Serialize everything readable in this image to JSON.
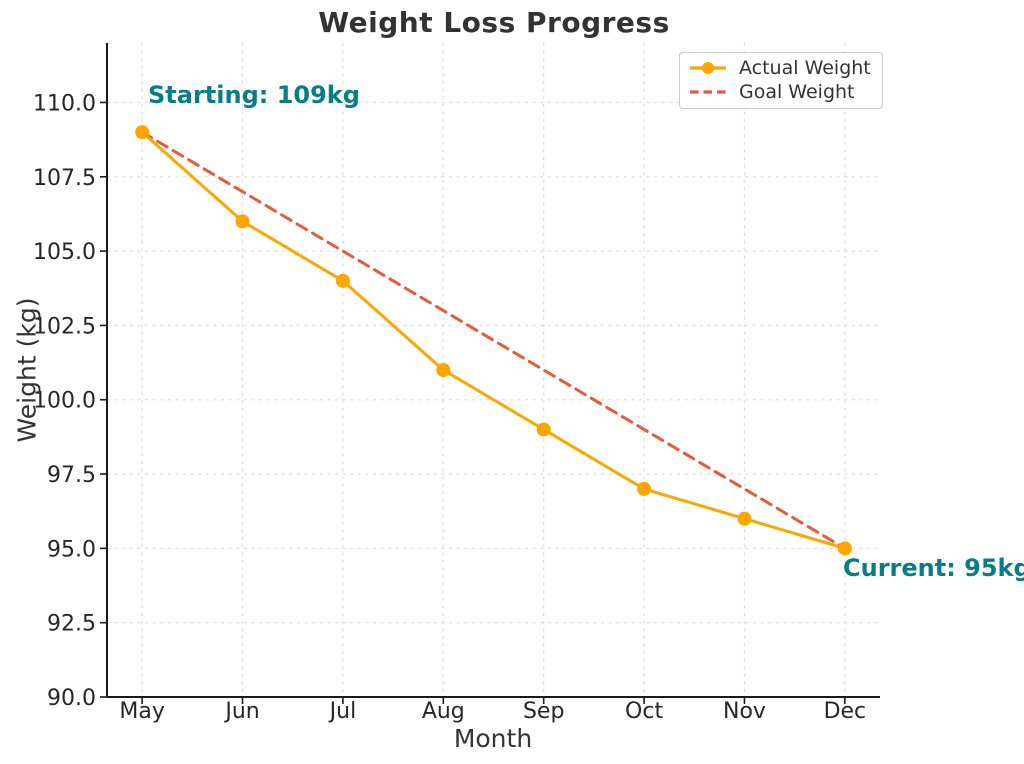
{
  "chart_data": {
    "type": "line",
    "title": "Weight Loss Progress",
    "xlabel": "Month",
    "ylabel": "Weight (kg)",
    "categories": [
      "May",
      "Jun",
      "Jul",
      "Aug",
      "Sep",
      "Oct",
      "Nov",
      "Dec"
    ],
    "series": [
      {
        "name": "Actual Weight",
        "values": [
          109,
          106,
          104,
          101,
          99,
          97,
          96,
          95
        ],
        "color": "#ffa500",
        "line_style": "solid",
        "marker": "circle"
      },
      {
        "name": "Goal Weight",
        "values": [
          109,
          107,
          105,
          103,
          101,
          99,
          97,
          95
        ],
        "color": "#e8593a",
        "line_style": "dashed",
        "marker": "none"
      }
    ],
    "ylim": [
      90,
      112
    ],
    "yticks": [
      "90.0",
      "92.5",
      "95.0",
      "97.5",
      "100.0",
      "102.5",
      "105.0",
      "107.5",
      "110.0"
    ],
    "grid": true,
    "legend_position": "upper right",
    "annotations": [
      {
        "text": "Starting: 109kg",
        "anchor": "first-point"
      },
      {
        "text": "Current: 95kg",
        "anchor": "last-point"
      }
    ],
    "colors": {
      "annotation": "#077e86",
      "grid": "#e0e0e0",
      "axis": "#1a1a1a",
      "tick_label": "#262626",
      "title": "#333333"
    }
  }
}
